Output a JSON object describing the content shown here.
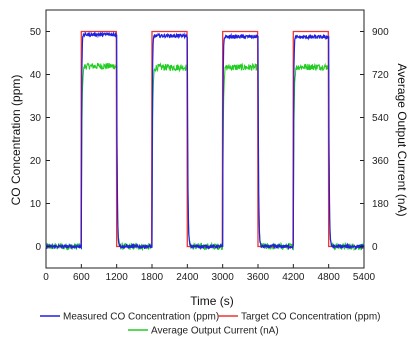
{
  "chart_data": {
    "type": "line",
    "xlabel": "Time (s)",
    "ylabel": "CO Concentration (ppm)",
    "y2label": "Average Output Current (nA)",
    "xlim": [
      0,
      5400
    ],
    "ylim": [
      -5,
      55
    ],
    "y2lim": [
      -90,
      990
    ],
    "x_ticks": [
      0,
      600,
      1200,
      1800,
      2400,
      3000,
      3600,
      4200,
      4800,
      5400
    ],
    "y_ticks": [
      0,
      10,
      20,
      30,
      40,
      50
    ],
    "y2_ticks": [
      0,
      180,
      360,
      540,
      720,
      900
    ],
    "grid": false,
    "legend_position": "bottom",
    "pulses": [
      {
        "on": 600,
        "off": 1200
      },
      {
        "on": 1800,
        "off": 2400
      },
      {
        "on": 3000,
        "off": 3600
      },
      {
        "on": 4200,
        "off": 4800
      }
    ],
    "series": [
      {
        "name": "Measured CO Concentration (ppm)",
        "axis": "left",
        "color": "#2020dd",
        "baseline": 0,
        "plateau": [
          49.3,
          49.0,
          48.8,
          48.7
        ]
      },
      {
        "name": "Target CO Concentration (ppm)",
        "axis": "left",
        "color": "#ee3333",
        "baseline": 0,
        "plateau": [
          50,
          50,
          50,
          50
        ]
      },
      {
        "name": "Average Output Current (nA)",
        "axis": "right",
        "color": "#22cc22",
        "baseline": 0,
        "plateau": [
          755,
          750,
          750,
          752
        ]
      }
    ]
  },
  "legend": {
    "measured": "Measured CO Concentration (ppm)",
    "target": "Target CO Concentration (ppm)",
    "current": "Average Output Current (nA)"
  }
}
